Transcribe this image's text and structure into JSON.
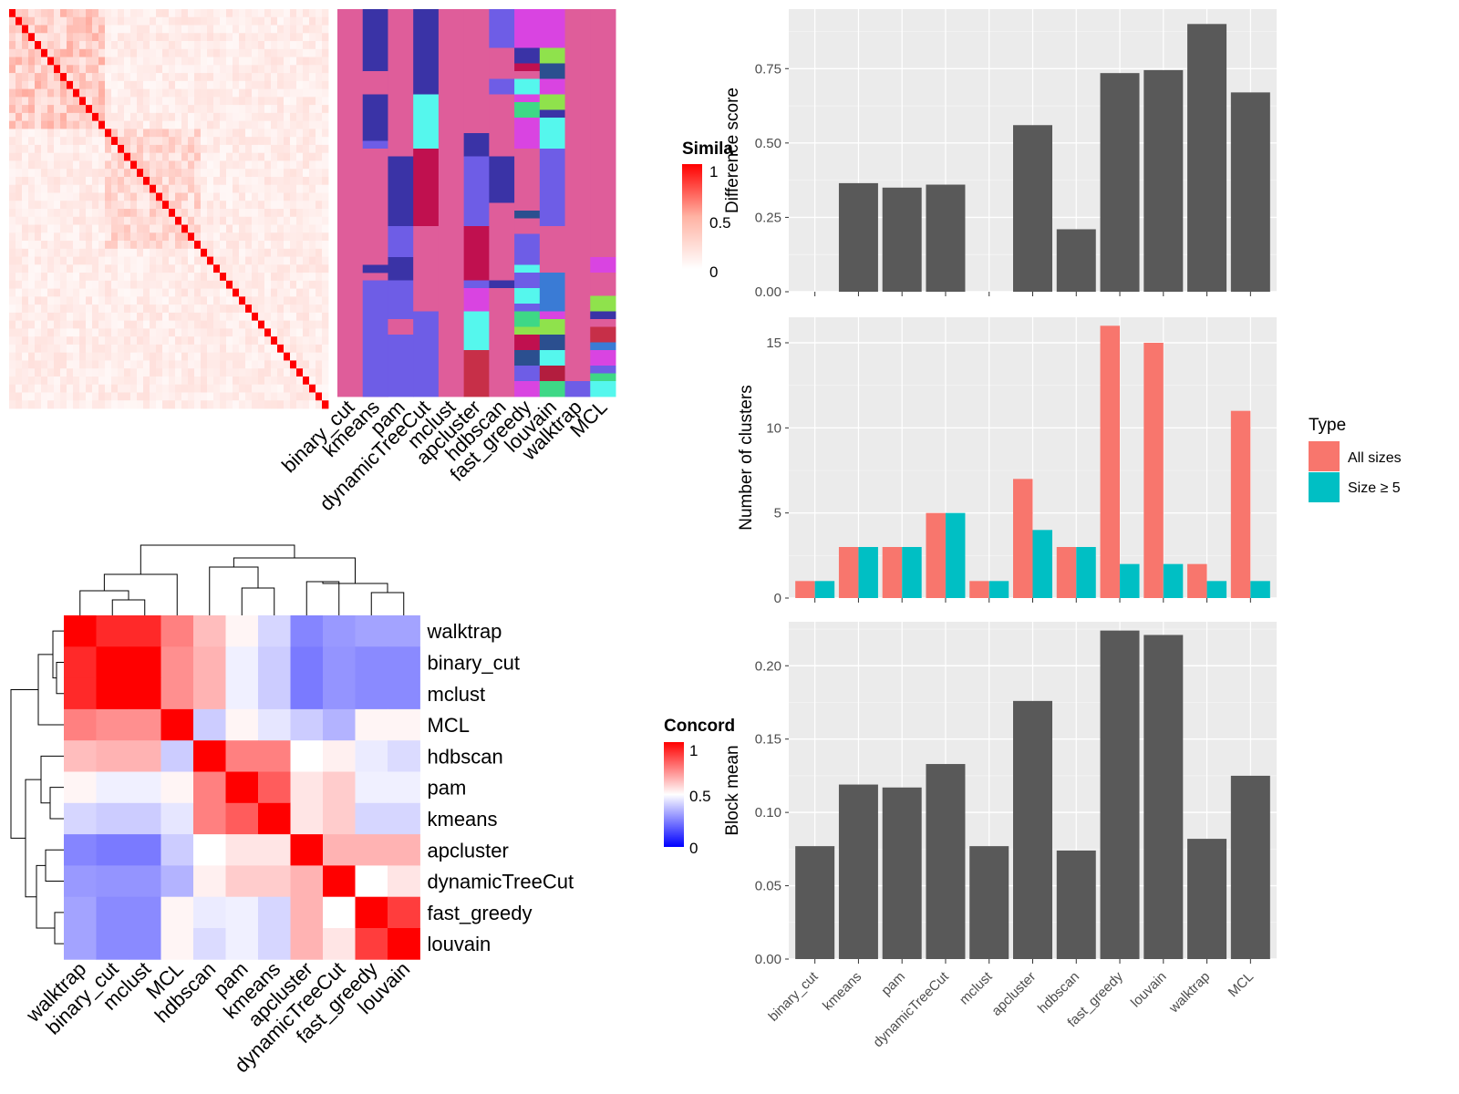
{
  "colors": {
    "panel_bg": "#ebebeb",
    "grid": "#ffffff",
    "bar_gray": "#595959",
    "type_all": "#f8766d",
    "type_size5": "#00bfc4",
    "sim_high": "#ff0000",
    "concord_high": "#ff0000",
    "concord_mid": "#ffffff",
    "concord_low": "#0000ff"
  },
  "similarity_legend": {
    "title": "Simila",
    "ticks": [
      "1",
      "0.5",
      "0"
    ]
  },
  "concordance_legend": {
    "title": "Concord",
    "ticks": [
      "1",
      "0.5",
      "0"
    ]
  },
  "membership": {
    "methods": [
      "binary_cut",
      "kmeans",
      "pam",
      "dynamicTreeCut",
      "mclust",
      "apcluster",
      "hdbscan",
      "fast_greedy",
      "louvain",
      "walktrap",
      "MCL"
    ],
    "palette": [
      "#df5d9a",
      "#3a33a6",
      "#6e5de6",
      "#c0104f",
      "#55f7ed",
      "#d944e1",
      "#8fe24c",
      "#2b4f8f",
      "#3ed886",
      "#c72f48",
      "#3a7bd5",
      "#b31d3e"
    ]
  },
  "concordance": {
    "order": [
      "walktrap",
      "binary_cut",
      "mclust",
      "MCL",
      "hdbscan",
      "pam",
      "kmeans",
      "apcluster",
      "dynamicTreeCut",
      "fast_greedy",
      "louvain"
    ],
    "matrix": [
      [
        1.0,
        0.92,
        0.92,
        0.75,
        0.63,
        0.52,
        0.42,
        0.26,
        0.3,
        0.32,
        0.32
      ],
      [
        0.92,
        1.0,
        1.0,
        0.72,
        0.65,
        0.47,
        0.4,
        0.24,
        0.29,
        0.27,
        0.27
      ],
      [
        0.92,
        1.0,
        1.0,
        0.72,
        0.65,
        0.47,
        0.4,
        0.24,
        0.29,
        0.27,
        0.27
      ],
      [
        0.75,
        0.72,
        0.72,
        1.0,
        0.4,
        0.52,
        0.45,
        0.4,
        0.35,
        0.52,
        0.52
      ],
      [
        0.63,
        0.65,
        0.65,
        0.4,
        1.0,
        0.75,
        0.75,
        0.5,
        0.53,
        0.46,
        0.43
      ],
      [
        0.52,
        0.47,
        0.47,
        0.52,
        0.75,
        1.0,
        0.82,
        0.55,
        0.6,
        0.47,
        0.47
      ],
      [
        0.42,
        0.4,
        0.4,
        0.45,
        0.75,
        0.82,
        1.0,
        0.55,
        0.6,
        0.42,
        0.42
      ],
      [
        0.26,
        0.24,
        0.24,
        0.4,
        0.5,
        0.55,
        0.55,
        1.0,
        0.65,
        0.65,
        0.65
      ],
      [
        0.3,
        0.29,
        0.29,
        0.35,
        0.53,
        0.6,
        0.6,
        0.65,
        1.0,
        0.5,
        0.55
      ],
      [
        0.32,
        0.27,
        0.27,
        0.52,
        0.46,
        0.47,
        0.42,
        0.65,
        0.5,
        1.0,
        0.88
      ],
      [
        0.32,
        0.27,
        0.27,
        0.52,
        0.43,
        0.47,
        0.42,
        0.65,
        0.55,
        0.88,
        1.0
      ]
    ]
  },
  "chart_data": [
    {
      "type": "heatmap",
      "name": "similarity-matrix",
      "n": 50,
      "range": [
        0,
        1
      ],
      "legend_ticks": [
        1,
        0.5,
        0
      ]
    },
    {
      "type": "heatmap",
      "name": "cluster-membership",
      "columns": [
        "binary_cut",
        "kmeans",
        "pam",
        "dynamicTreeCut",
        "mclust",
        "apcluster",
        "hdbscan",
        "fast_greedy",
        "louvain",
        "walktrap",
        "MCL"
      ]
    },
    {
      "type": "heatmap",
      "name": "concordance",
      "rows": [
        "walktrap",
        "binary_cut",
        "mclust",
        "MCL",
        "hdbscan",
        "pam",
        "kmeans",
        "apcluster",
        "dynamicTreeCut",
        "fast_greedy",
        "louvain"
      ],
      "columns": [
        "walktrap",
        "binary_cut",
        "mclust",
        "MCL",
        "hdbscan",
        "pam",
        "kmeans",
        "apcluster",
        "dynamicTreeCut",
        "fast_greedy",
        "louvain"
      ],
      "legend_ticks": [
        1,
        0.5,
        0
      ]
    },
    {
      "type": "bar",
      "categories": [
        "binary_cut",
        "kmeans",
        "pam",
        "dynamicTreeCut",
        "mclust",
        "apcluster",
        "hdbscan",
        "fast_greedy",
        "louvain",
        "walktrap",
        "MCL"
      ],
      "values": [
        0,
        0.365,
        0.35,
        0.36,
        0,
        0.56,
        0.21,
        0.735,
        0.745,
        0.9,
        0.67
      ],
      "ylabel": "Difference score",
      "ylim": [
        0,
        0.95
      ],
      "yticks": [
        0,
        0.25,
        0.5,
        0.75
      ],
      "ytick_labels": [
        "0.00",
        "0.25",
        "0.50",
        "0.75"
      ]
    },
    {
      "type": "bar",
      "categories": [
        "binary_cut",
        "kmeans",
        "pam",
        "dynamicTreeCut",
        "mclust",
        "apcluster",
        "hdbscan",
        "fast_greedy",
        "louvain",
        "walktrap",
        "MCL"
      ],
      "series": [
        {
          "name": "All sizes",
          "values": [
            1,
            3,
            3,
            5,
            1,
            7,
            3,
            16,
            15,
            2,
            11
          ]
        },
        {
          "name": "Size ≥ 5",
          "values": [
            1,
            3,
            3,
            5,
            1,
            4,
            3,
            2,
            2,
            1,
            1
          ]
        }
      ],
      "ylabel": "Number of clusters",
      "ylim": [
        0,
        16.5
      ],
      "yticks": [
        0,
        5,
        10,
        15
      ],
      "ytick_labels": [
        "0",
        "5",
        "10",
        "15"
      ],
      "legend_title": "Type",
      "legend_position": "right"
    },
    {
      "type": "bar",
      "categories": [
        "binary_cut",
        "kmeans",
        "pam",
        "dynamicTreeCut",
        "mclust",
        "apcluster",
        "hdbscan",
        "fast_greedy",
        "louvain",
        "walktrap",
        "MCL"
      ],
      "values": [
        0.077,
        0.119,
        0.117,
        0.133,
        0.077,
        0.176,
        0.074,
        0.224,
        0.221,
        0.082,
        0.125
      ],
      "ylabel": "Block mean",
      "ylim": [
        0,
        0.23
      ],
      "yticks": [
        0,
        0.05,
        0.1,
        0.15,
        0.2
      ],
      "ytick_labels": [
        "0.00",
        "0.05",
        "0.10",
        "0.15",
        "0.20"
      ]
    }
  ]
}
